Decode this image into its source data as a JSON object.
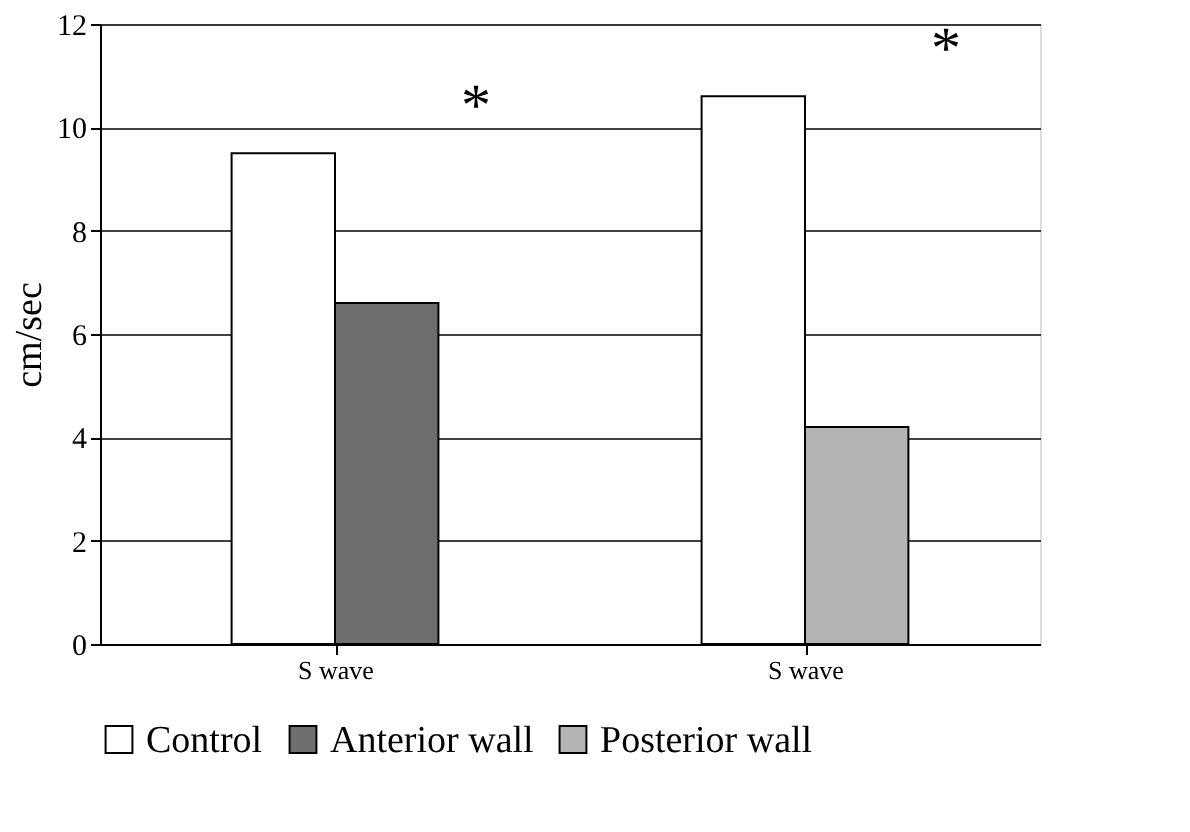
{
  "chart_data": {
    "type": "bar",
    "ylabel": "cm/sec",
    "categories": [
      "S wave",
      "S wave"
    ],
    "series": [
      {
        "name": "Control",
        "color": "#ffffff",
        "values": [
          9.5,
          10.6
        ]
      },
      {
        "name": "Anterior wall",
        "color": "#6e6e6e",
        "values": [
          6.6,
          null
        ]
      },
      {
        "name": "Posterior wall",
        "color": "#b4b4b4",
        "values": [
          null,
          4.2
        ]
      }
    ],
    "ylim": [
      0,
      12
    ],
    "yticks": [
      0,
      2,
      4,
      6,
      8,
      10,
      12
    ],
    "grid": "y",
    "legend": "bottom",
    "annotations": [
      "*",
      "*"
    ]
  }
}
